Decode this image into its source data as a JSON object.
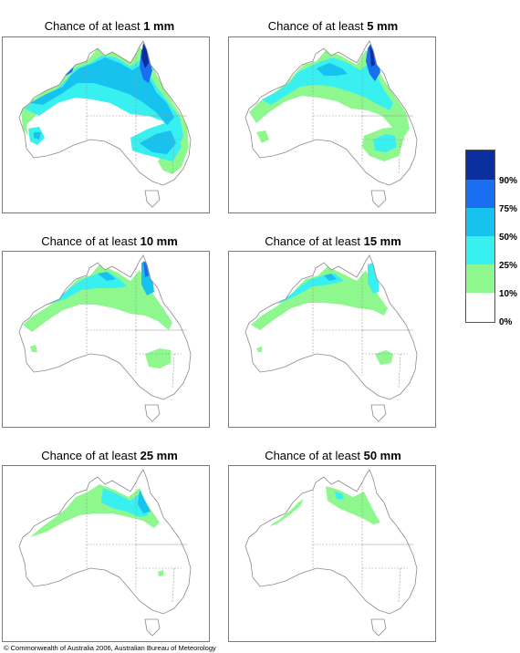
{
  "panels": [
    {
      "prefix": "Chance of at least",
      "amount": "1 mm"
    },
    {
      "prefix": "Chance of at least",
      "amount": "5 mm"
    },
    {
      "prefix": "Chance of at least",
      "amount": "10 mm"
    },
    {
      "prefix": "Chance of at least",
      "amount": "15 mm"
    },
    {
      "prefix": "Chance of at least",
      "amount": "25 mm"
    },
    {
      "prefix": "Chance of at least",
      "amount": "50 mm"
    }
  ],
  "legend": {
    "labels": [
      "90%",
      "75%",
      "50%",
      "25%",
      "10%",
      "0%"
    ],
    "colors": [
      "#0b2e9e",
      "#1a6ef0",
      "#18c2ee",
      "#38f0f0",
      "#8ef78e",
      "#ffffff"
    ]
  },
  "copyright": "© Commonwealth of Australia 2006, Australian Bureau of Meteorology",
  "colors": {
    "outline": "#8a8a8a",
    "border_dash": "#9a9a9a"
  }
}
